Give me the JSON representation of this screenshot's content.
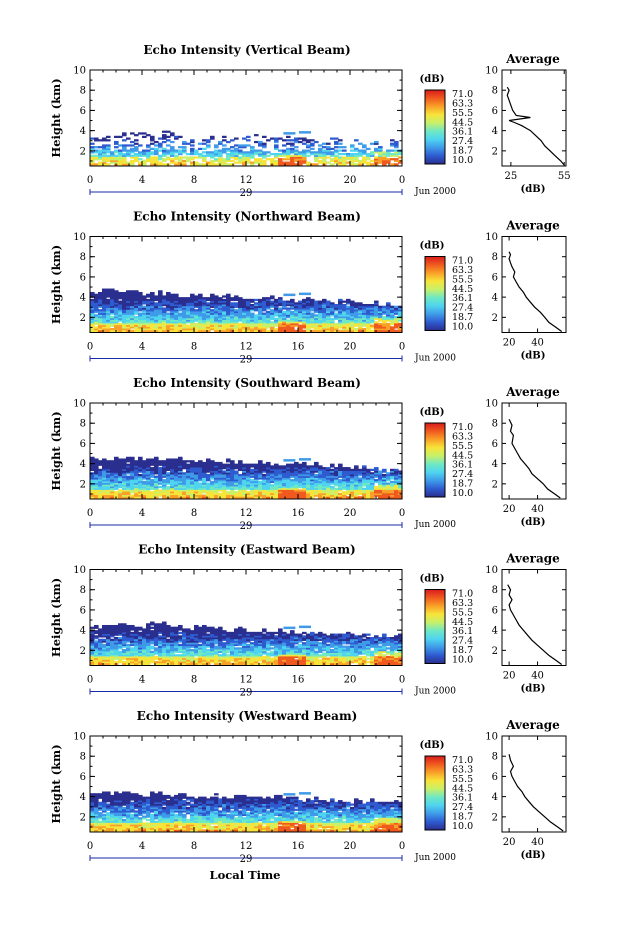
{
  "figure": {
    "x_axis_title": "Local Time",
    "date_label": "Jun 2000",
    "day_label": "29",
    "profile_title": "Average",
    "profile_xlabel": "(dB)",
    "colorbar_title": "(dB)"
  },
  "colorbar": {
    "labels": [
      "71.0",
      "63.3",
      "55.5",
      "44.5",
      "36.1",
      "27.4",
      "18.7",
      "10.0"
    ],
    "colors": [
      "#2a2e8e",
      "#2e5bd0",
      "#3f9be8",
      "#4fd4ef",
      "#6fe8c4",
      "#c8f06a",
      "#f7e43a",
      "#f9a028",
      "#f05a1e",
      "#d81c1c"
    ]
  },
  "chart_data": [
    {
      "type": "heatmap",
      "title": "Echo Intensity (Vertical Beam)",
      "xlabel": "",
      "ylabel": "Height (km)",
      "x_ticks": [
        "0",
        "4",
        "8",
        "12",
        "16",
        "20",
        "0"
      ],
      "y_ticks": [
        "2",
        "4",
        "6",
        "8",
        "10"
      ],
      "xlim": [
        0,
        24
      ],
      "ylim": [
        0.5,
        10
      ],
      "z_range": [
        10.0,
        71.0
      ],
      "z_unit": "dB",
      "top_km": [
        3.2,
        3.6,
        3.8,
        3.6,
        3.4,
        3.3,
        3.4,
        3.3,
        3.2,
        3.1,
        3.0,
        3.0
      ],
      "sparseness": 0.5
    },
    {
      "type": "heatmap",
      "title": "Echo Intensity (Northward Beam)",
      "xlabel": "",
      "ylabel": "Height (km)",
      "x_ticks": [
        "0",
        "4",
        "8",
        "12",
        "16",
        "20",
        "0"
      ],
      "y_ticks": [
        "2",
        "4",
        "6",
        "8",
        "10"
      ],
      "xlim": [
        0,
        24
      ],
      "ylim": [
        0.5,
        10
      ],
      "z_range": [
        10.0,
        71.0
      ],
      "z_unit": "dB",
      "top_km": [
        4.5,
        4.4,
        4.3,
        4.2,
        4.1,
        4.0,
        3.9,
        3.8,
        3.6,
        3.5,
        3.4,
        3.3
      ],
      "sparseness": 0.05
    },
    {
      "type": "heatmap",
      "title": "Echo Intensity (Southward Beam)",
      "xlabel": "",
      "ylabel": "Height (km)",
      "x_ticks": [
        "0",
        "4",
        "8",
        "12",
        "16",
        "20",
        "0"
      ],
      "y_ticks": [
        "2",
        "4",
        "6",
        "8",
        "10"
      ],
      "xlim": [
        0,
        24
      ],
      "ylim": [
        0.5,
        10
      ],
      "z_range": [
        10.0,
        71.0
      ],
      "z_unit": "dB",
      "top_km": [
        4.4,
        4.5,
        4.4,
        4.3,
        4.2,
        4.1,
        4.0,
        3.9,
        3.8,
        3.7,
        3.5,
        3.3
      ],
      "sparseness": 0.04
    },
    {
      "type": "heatmap",
      "title": "Echo Intensity (Eastward Beam)",
      "xlabel": "",
      "ylabel": "Height (km)",
      "x_ticks": [
        "0",
        "4",
        "8",
        "12",
        "16",
        "20",
        "0"
      ],
      "y_ticks": [
        "2",
        "4",
        "6",
        "8",
        "10"
      ],
      "xlim": [
        0,
        24
      ],
      "ylim": [
        0.5,
        10
      ],
      "z_range": [
        10.0,
        71.0
      ],
      "z_unit": "dB",
      "top_km": [
        4.4,
        4.5,
        4.5,
        4.3,
        4.2,
        4.0,
        3.9,
        3.8,
        3.7,
        3.6,
        3.5,
        3.3
      ],
      "sparseness": 0.05
    },
    {
      "type": "heatmap",
      "title": "Echo Intensity (Westward Beam)",
      "xlabel": "",
      "ylabel": "Height (km)",
      "x_ticks": [
        "0",
        "4",
        "8",
        "12",
        "16",
        "20",
        "0"
      ],
      "y_ticks": [
        "2",
        "4",
        "6",
        "8",
        "10"
      ],
      "xlim": [
        0,
        24
      ],
      "ylim": [
        0.5,
        10
      ],
      "z_range": [
        10.0,
        71.0
      ],
      "z_unit": "dB",
      "top_km": [
        4.2,
        4.3,
        4.2,
        4.1,
        4.0,
        3.9,
        3.9,
        3.8,
        3.7,
        3.6,
        3.5,
        3.4
      ],
      "sparseness": 0.05
    }
  ],
  "profiles": [
    {
      "type": "line",
      "title": "Average",
      "xlabel": "(dB)",
      "ylabel": "Height (km)",
      "x_ticks": [
        "25",
        "55"
      ],
      "xlim": [
        20,
        56
      ],
      "ylim": [
        0.5,
        10
      ],
      "x": [
        55,
        53,
        50,
        47,
        44,
        42,
        39,
        36,
        34,
        31,
        27,
        24,
        36,
        28,
        26,
        25,
        24,
        23,
        24,
        23
      ],
      "y": [
        0.6,
        1.0,
        1.5,
        2.0,
        2.5,
        3.0,
        3.5,
        4.0,
        4.2,
        4.5,
        4.8,
        5.0,
        5.3,
        5.5,
        6.0,
        6.5,
        7.0,
        7.5,
        8.0,
        8.3
      ]
    },
    {
      "type": "line",
      "title": "Average",
      "xlabel": "(dB)",
      "ylabel": "Height (km)",
      "x_ticks": [
        "20",
        "40"
      ],
      "xlim": [
        15,
        60
      ],
      "ylim": [
        0.5,
        10
      ],
      "x": [
        57,
        53,
        48,
        45,
        42,
        38,
        35,
        32,
        30,
        27,
        25,
        23,
        24,
        22,
        21,
        20,
        21,
        20
      ],
      "y": [
        0.6,
        1.0,
        1.5,
        2.0,
        2.5,
        3.0,
        3.5,
        4.0,
        4.5,
        5.0,
        5.5,
        6.0,
        6.5,
        7.0,
        7.4,
        7.8,
        8.2,
        8.5
      ]
    },
    {
      "type": "line",
      "title": "Average",
      "xlabel": "(dB)",
      "ylabel": "Height (km)",
      "x_ticks": [
        "20",
        "40"
      ],
      "xlim": [
        15,
        60
      ],
      "ylim": [
        0.5,
        10
      ],
      "x": [
        56,
        52,
        47,
        44,
        40,
        36,
        34,
        31,
        28,
        26,
        24,
        22,
        23,
        21,
        22,
        20
      ],
      "y": [
        0.6,
        1.0,
        1.5,
        2.0,
        2.5,
        3.0,
        3.5,
        4.0,
        4.5,
        5.0,
        5.5,
        6.0,
        6.8,
        7.2,
        7.8,
        8.4
      ]
    },
    {
      "type": "line",
      "title": "Average",
      "xlabel": "(dB)",
      "ylabel": "Height (km)",
      "x_ticks": [
        "20",
        "40"
      ],
      "xlim": [
        15,
        60
      ],
      "ylim": [
        0.5,
        10
      ],
      "x": [
        57,
        53,
        48,
        44,
        40,
        36,
        33,
        30,
        27,
        25,
        23,
        21,
        20,
        22,
        20,
        21,
        19
      ],
      "y": [
        0.6,
        1.0,
        1.5,
        2.0,
        2.5,
        3.0,
        3.5,
        4.0,
        4.5,
        5.0,
        5.5,
        6.0,
        6.5,
        7.0,
        7.5,
        8.0,
        8.5
      ]
    },
    {
      "type": "line",
      "title": "Average",
      "xlabel": "(dB)",
      "ylabel": "Height (km)",
      "x_ticks": [
        "20",
        "40"
      ],
      "xlim": [
        15,
        60
      ],
      "ylim": [
        0.5,
        10
      ],
      "x": [
        58,
        54,
        49,
        45,
        41,
        37,
        34,
        31,
        29,
        26,
        24,
        22,
        21,
        23,
        21,
        20
      ],
      "y": [
        0.6,
        1.0,
        1.5,
        2.0,
        2.5,
        3.0,
        3.5,
        4.0,
        4.5,
        5.0,
        5.5,
        6.0,
        6.5,
        7.0,
        7.6,
        8.2
      ]
    }
  ]
}
